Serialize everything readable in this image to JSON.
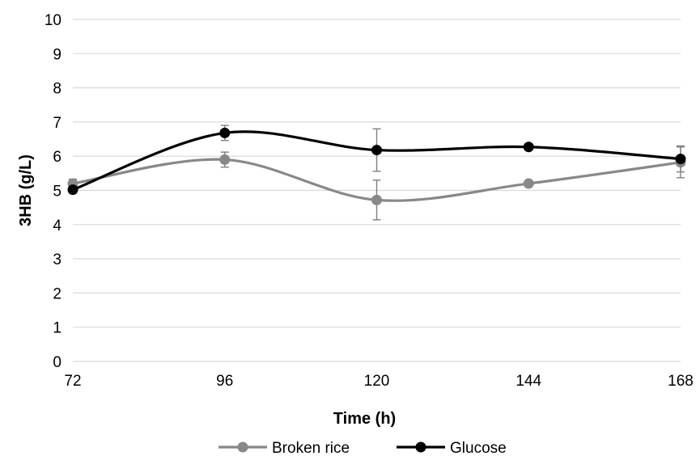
{
  "chart_data": {
    "type": "line",
    "title": "",
    "xlabel": "Time (h)",
    "ylabel": "3HB (g/L)",
    "categories": [
      "72",
      "96",
      "120",
      "144",
      "168"
    ],
    "ylim": [
      0,
      10
    ],
    "y_ticks": [
      0,
      1,
      2,
      3,
      4,
      5,
      6,
      7,
      8,
      9,
      10
    ],
    "grid": "horizontal",
    "legend_position": "bottom",
    "smoothed": true,
    "series": [
      {
        "name": "Broken rice",
        "color": "#888888",
        "values": [
          5.2,
          5.9,
          4.72,
          5.2,
          5.82
        ],
        "errors": [
          0.13,
          0.22,
          0.58,
          0.08,
          0.45
        ]
      },
      {
        "name": "Glucose",
        "color": "#000000",
        "values": [
          5.02,
          6.68,
          6.18,
          6.27,
          5.92
        ],
        "errors": [
          0.1,
          0.22,
          0.62,
          0.05,
          0.38
        ]
      }
    ]
  }
}
